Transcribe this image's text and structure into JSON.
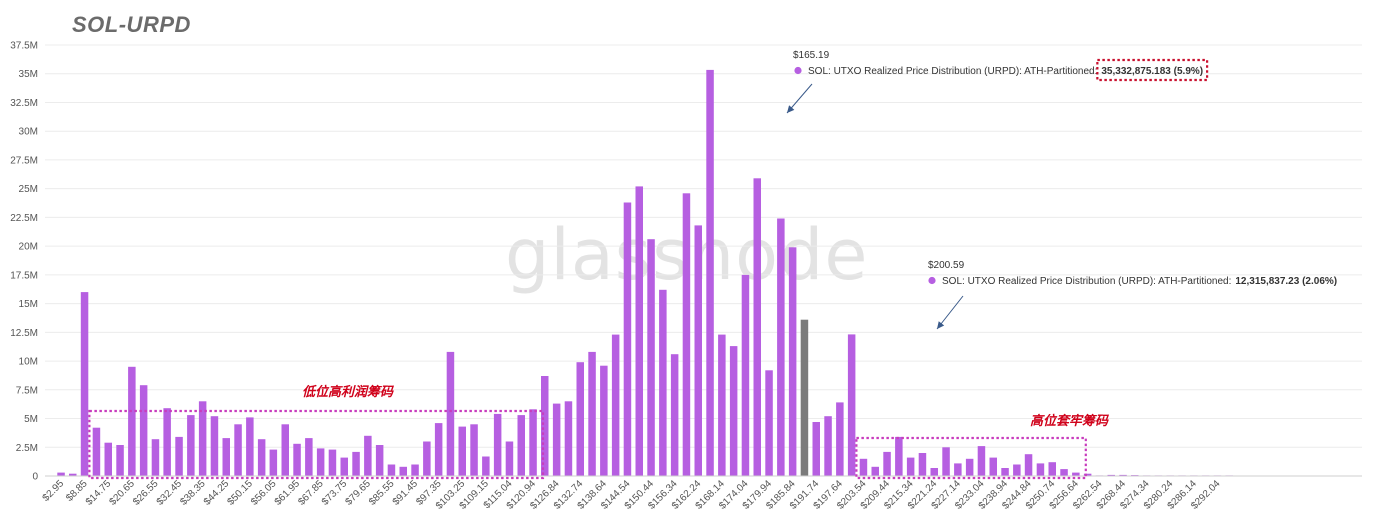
{
  "chart_data": {
    "type": "bar",
    "title": "SOL-URPD",
    "watermark": "glassnode",
    "ylim": [
      0,
      37500000
    ],
    "y_ticks": [
      "0",
      "2.5M",
      "5M",
      "7.5M",
      "10M",
      "12.5M",
      "15M",
      "17.5M",
      "20M",
      "22.5M",
      "25M",
      "27.5M",
      "30M",
      "32.5M",
      "35M",
      "37.5M"
    ],
    "x_tick_labels": [
      "$2.95",
      "$8.85",
      "$14.75",
      "$20.65",
      "$26.55",
      "$32.45",
      "$38.35",
      "$44.25",
      "$50.15",
      "$56.05",
      "$61.95",
      "$67.85",
      "$73.75",
      "$79.65",
      "$85.55",
      "$91.45",
      "$97.35",
      "$103.25",
      "$109.15",
      "$115.04",
      "$120.94",
      "$126.84",
      "$132.74",
      "$138.64",
      "$144.54",
      "$150.44",
      "$156.34",
      "$162.24",
      "$168.14",
      "$174.04",
      "$179.94",
      "$185.84",
      "$191.74",
      "$197.64",
      "$203.54",
      "$209.44",
      "$215.34",
      "$221.24",
      "$227.14",
      "$233.04",
      "$238.94",
      "$244.84",
      "$250.74",
      "$256.64",
      "$262.54",
      "$268.44",
      "$274.34",
      "$280.24",
      "$286.14",
      "$292.04"
    ],
    "bin_width": 2.95,
    "values": [
      300000,
      200000,
      16000000,
      4200000,
      2900000,
      2700000,
      9500000,
      7900000,
      3200000,
      5900000,
      3400000,
      5300000,
      6500000,
      5200000,
      3300000,
      4500000,
      5100000,
      3200000,
      2300000,
      4500000,
      2800000,
      3300000,
      2400000,
      2300000,
      1600000,
      2100000,
      3500000,
      2700000,
      1000000,
      800000,
      1000000,
      3000000,
      4600000,
      10800000,
      4300000,
      4500000,
      1700000,
      5400000,
      3000000,
      5300000,
      5800000,
      8700000,
      6300000,
      6500000,
      9900000,
      10800000,
      9600000,
      12300000,
      23800000,
      25200000,
      20600000,
      16200000,
      10600000,
      24600000,
      21800000,
      35332875.183,
      12300000,
      11300000,
      17500000,
      25900000,
      9200000,
      22400000,
      19900000,
      13600000,
      4700000,
      5200000,
      6400000,
      12315837.23,
      1500000,
      800000,
      2100000,
      3400000,
      1600000,
      2000000,
      700000,
      2500000,
      1100000,
      1500000,
      2600000,
      1600000,
      700000,
      1000000,
      1900000,
      1100000,
      1200000,
      600000,
      300000,
      200000,
      50000,
      100000,
      100000,
      80000,
      30000,
      20000,
      20000,
      10000,
      10000,
      10000,
      10000,
      5000
    ],
    "current_bin_index": 63,
    "colors": {
      "bar": "#b65fe1",
      "current": "#7b7b7b",
      "annotation": "#c8102e",
      "arrow": "#3a5a8a",
      "grid": "#ececec"
    },
    "annotations": [
      {
        "price": "$165.19",
        "label": "SOL: UTXO Realized Price Distribution (URPD): ATH-Partitioned:",
        "value": "35,332,875.183 (5.9%)",
        "bar_index": 55
      },
      {
        "price": "$200.59",
        "label": "SOL: UTXO Realized Price Distribution (URPD): ATH-Partitioned:",
        "value": "12,315,837.23 (2.06%)",
        "bar_index": 67
      }
    ],
    "region_labels": [
      {
        "text": "低位高利润筹码",
        "from_index": 3,
        "to_index": 40
      },
      {
        "text": "高位套牢筹码",
        "from_index": 68,
        "to_index": 86
      }
    ]
  }
}
